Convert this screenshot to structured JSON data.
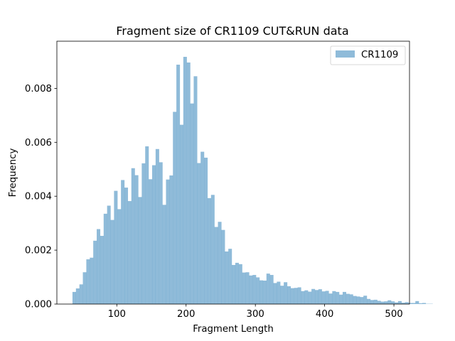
{
  "chart_data": {
    "type": "bar",
    "title": "Fragment size of CR1109 CUT&RUN data",
    "xlabel": "Fragment Length",
    "ylabel": "Frequency",
    "xlim": [
      13.5,
      522.5
    ],
    "ylim": [
      0,
      0.00975
    ],
    "x_ticks": [
      100,
      200,
      300,
      400,
      500
    ],
    "x_tick_labels": [
      "100",
      "200",
      "300",
      "400",
      "500"
    ],
    "y_ticks": [
      0,
      0.002,
      0.004,
      0.006,
      0.008
    ],
    "y_tick_labels": [
      "0.000",
      "0.002",
      "0.004",
      "0.006",
      "0.008"
    ],
    "legend_position": "top-right",
    "bin_start": 36,
    "bin_width": 5,
    "series": [
      {
        "name": "CR1109",
        "color": "#1f77b4",
        "alpha": 0.5,
        "values": [
          0.00045,
          0.00058,
          0.00073,
          0.00118,
          0.00166,
          0.00172,
          0.00235,
          0.00278,
          0.00253,
          0.00335,
          0.00365,
          0.00312,
          0.0042,
          0.00352,
          0.0046,
          0.00432,
          0.00382,
          0.00504,
          0.00478,
          0.00397,
          0.00522,
          0.00585,
          0.00463,
          0.00515,
          0.00575,
          0.00526,
          0.00368,
          0.00462,
          0.00477,
          0.00713,
          0.00888,
          0.00665,
          0.00917,
          0.00896,
          0.00744,
          0.00845,
          0.00523,
          0.00565,
          0.00543,
          0.00393,
          0.00405,
          0.00286,
          0.00305,
          0.00275,
          0.00195,
          0.00205,
          0.00145,
          0.00153,
          0.00148,
          0.00117,
          0.00118,
          0.00106,
          0.00108,
          0.00099,
          0.00088,
          0.00087,
          0.00113,
          0.00108,
          0.00078,
          0.00083,
          0.00068,
          0.00081,
          0.00066,
          0.00059,
          0.0006,
          0.00062,
          0.00048,
          0.00051,
          0.00046,
          0.00056,
          0.00052,
          0.00055,
          0.00047,
          0.00049,
          0.00039,
          0.00048,
          0.00045,
          0.00035,
          0.00045,
          0.00038,
          0.00036,
          0.0003,
          0.00028,
          0.00026,
          0.00031,
          0.00019,
          0.00015,
          0.00016,
          0.00012,
          9e-05,
          0.0001,
          0.00014,
          0.0001,
          6e-05,
          0.00011,
          5e-05,
          7e-05,
          4e-05,
          4e-05,
          0.00011,
          3e-05,
          4e-05,
          1e-05,
          1e-05
        ]
      }
    ]
  }
}
